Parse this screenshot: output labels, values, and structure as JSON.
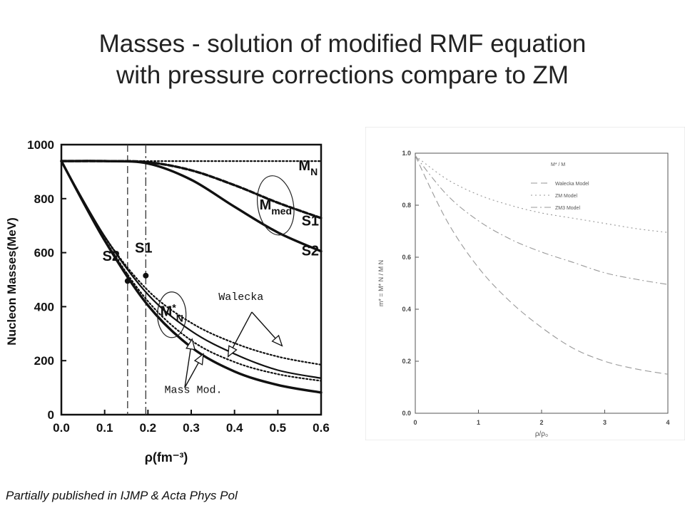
{
  "slide": {
    "title_line1": "Masses - solution of modified RMF equation",
    "title_line2": "with  pressure corrections compare to ZM",
    "footer": "Partially published in IJMP & Acta Phys Pol"
  },
  "chart_data": [
    {
      "type": "line",
      "xlabel": "ρ(fm⁻³)",
      "ylabel": "Nucleon Masses(MeV)",
      "xlim": [
        0.0,
        0.6
      ],
      "ylim": [
        0,
        1000
      ],
      "xticks": [
        "0.0",
        "0.1",
        "0.2",
        "0.3",
        "0.4",
        "0.5",
        "0.6"
      ],
      "yticks": [
        "0",
        "200",
        "400",
        "600",
        "800",
        "1000"
      ],
      "grid": false,
      "vertical_markers": [
        {
          "x": 0.153,
          "label": "S2",
          "style": "dashed"
        },
        {
          "x": 0.195,
          "label": "S1",
          "style": "dashdot"
        }
      ],
      "series": [
        {
          "name": "M_N",
          "style": "dotted",
          "x": [
            0.0,
            0.6
          ],
          "y": [
            939,
            939
          ]
        },
        {
          "name": "",
          "style": "dashed-bold",
          "x": [
            0.0,
            0.1,
            0.2,
            0.3,
            0.4,
            0.5,
            0.6
          ],
          "y": [
            939,
            939,
            935,
            905,
            850,
            785,
            728
          ]
        },
        {
          "name": "",
          "style": "solid-bold",
          "x": [
            0.0,
            0.1,
            0.2,
            0.3,
            0.4,
            0.5,
            0.6
          ],
          "y": [
            939,
            939,
            930,
            870,
            770,
            675,
            605
          ]
        },
        {
          "name": "",
          "style": "solid",
          "x": [
            0.0,
            0.1,
            0.2,
            0.3,
            0.4,
            0.5,
            0.6
          ],
          "y": [
            939,
            660,
            445,
            310,
            225,
            165,
            135
          ]
        },
        {
          "name": "",
          "style": "dotted",
          "x": [
            0.0,
            0.1,
            0.2,
            0.3,
            0.4,
            0.5,
            0.6
          ],
          "y": [
            939,
            660,
            460,
            340,
            265,
            215,
            185
          ]
        },
        {
          "name": "",
          "style": "solid-bold",
          "x": [
            0.0,
            0.1,
            0.2,
            0.3,
            0.4,
            0.5,
            0.6
          ],
          "y": [
            939,
            645,
            405,
            250,
            160,
            110,
            82
          ]
        },
        {
          "name": "",
          "style": "dotted",
          "x": [
            0.0,
            0.1,
            0.2,
            0.3,
            0.4,
            0.5,
            0.6
          ],
          "y": [
            939,
            650,
            420,
            275,
            195,
            150,
            125
          ]
        }
      ],
      "points": [
        {
          "x": 0.153,
          "y": 495,
          "label": "S2"
        },
        {
          "x": 0.195,
          "y": 515,
          "label": "S1"
        }
      ],
      "annotations": [
        {
          "text": "M_N",
          "x": 0.57,
          "y": 905
        },
        {
          "text": "M_med",
          "x": 0.495,
          "y": 760
        },
        {
          "text": "S1",
          "x": 0.575,
          "y": 700
        },
        {
          "text": "S2",
          "x": 0.575,
          "y": 590
        },
        {
          "text": "S2",
          "x": 0.115,
          "y": 570
        },
        {
          "text": "S1",
          "x": 0.19,
          "y": 600
        },
        {
          "text": "M*_N",
          "x": 0.255,
          "y": 365
        },
        {
          "text": "Walecka",
          "x": 0.415,
          "y": 425
        },
        {
          "text": "Mass Mod.",
          "x": 0.305,
          "y": 80
        }
      ]
    },
    {
      "type": "line",
      "xlabel": "ρ/ρ₀",
      "ylabel": "m* = M* N / M N",
      "xlim": [
        0,
        4
      ],
      "ylim": [
        0.0,
        1.0
      ],
      "xticks": [
        "0",
        "1",
        "2",
        "3",
        "4"
      ],
      "yticks": [
        "0.0",
        "0.2",
        "0.4",
        "0.6",
        "0.8",
        "1.0"
      ],
      "grid": false,
      "legend_title": "M* / M",
      "legend_position": "top-right",
      "series": [
        {
          "name": "Walecka Model",
          "style": "dashed",
          "x": [
            0,
            0.5,
            1,
            1.5,
            2,
            2.5,
            3,
            3.5,
            4
          ],
          "y": [
            0.99,
            0.74,
            0.56,
            0.43,
            0.33,
            0.25,
            0.2,
            0.17,
            0.15
          ]
        },
        {
          "name": "ZM Model",
          "style": "dotted",
          "x": [
            0,
            0.5,
            1,
            1.5,
            2,
            2.5,
            3,
            3.5,
            4
          ],
          "y": [
            0.99,
            0.9,
            0.84,
            0.8,
            0.77,
            0.75,
            0.73,
            0.71,
            0.695
          ]
        },
        {
          "name": "ZM3 Model",
          "style": "dashdot",
          "x": [
            0,
            0.5,
            1,
            1.5,
            2,
            2.5,
            3,
            3.5,
            4
          ],
          "y": [
            0.99,
            0.84,
            0.74,
            0.67,
            0.62,
            0.58,
            0.54,
            0.515,
            0.495
          ]
        }
      ]
    }
  ]
}
